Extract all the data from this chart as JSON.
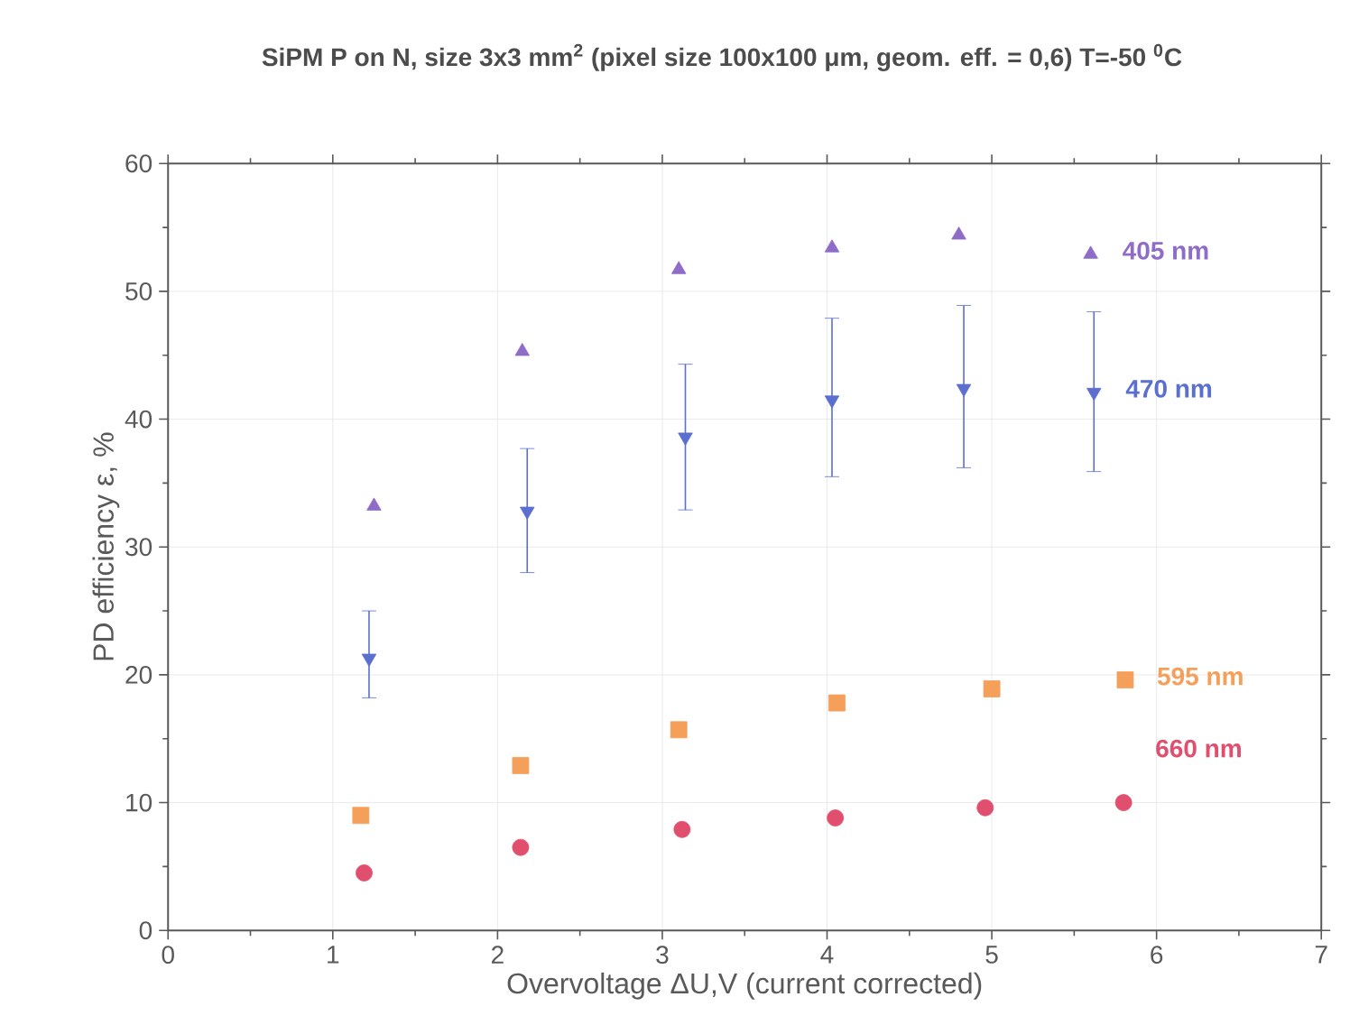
{
  "chart_data": {
    "type": "scatter",
    "title": "SiPM  P on N,  size  3x3 mm$^{2}$  (pixel size 100x100 μm,  geom. eff. = 0,6)  T=-50 $^{0}$C",
    "xlabel": "Overvoltage ΔU,V (current corrected)",
    "ylabel": "PD efficiency ε, %",
    "xlim": [
      0,
      7
    ],
    "ylim": [
      0,
      60
    ],
    "xticks": [
      0,
      1,
      2,
      3,
      4,
      5,
      6,
      7
    ],
    "yticks": [
      0,
      10,
      20,
      30,
      40,
      50,
      60
    ],
    "grid": true,
    "legend": false,
    "series": [
      {
        "name": "405 nm",
        "color": "#8e6cc8",
        "marker": "triangle",
        "x": [
          1.25,
          2.15,
          3.1,
          4.03,
          4.8,
          5.6
        ],
        "values": [
          33.2,
          45.3,
          51.7,
          53.4,
          54.4,
          52.9
        ]
      },
      {
        "name": "470 nm",
        "color": "#5b6fcf",
        "marker": "triangle-down",
        "x": [
          1.22,
          2.18,
          3.14,
          4.03,
          4.83,
          5.62
        ],
        "values": [
          21.3,
          32.8,
          38.6,
          41.5,
          42.4,
          42.1
        ],
        "errors": [
          [
            18.2,
            25.0
          ],
          [
            28.0,
            37.7
          ],
          [
            32.9,
            44.3
          ],
          [
            35.5,
            47.9
          ],
          [
            36.2,
            48.9
          ],
          [
            35.9,
            48.4
          ]
        ]
      },
      {
        "name": "595 nm",
        "color": "#f5a05a",
        "marker": "square",
        "x": [
          1.17,
          2.14,
          3.1,
          4.06,
          5.0,
          5.81
        ],
        "values": [
          9.0,
          12.9,
          15.7,
          17.8,
          18.9,
          19.6
        ]
      },
      {
        "name": "660 nm",
        "color": "#e0506e",
        "marker": "circle",
        "x": [
          1.19,
          2.14,
          3.12,
          4.05,
          4.96,
          5.8
        ],
        "values": [
          4.5,
          6.5,
          7.9,
          8.8,
          9.6,
          10.0
        ]
      }
    ]
  }
}
